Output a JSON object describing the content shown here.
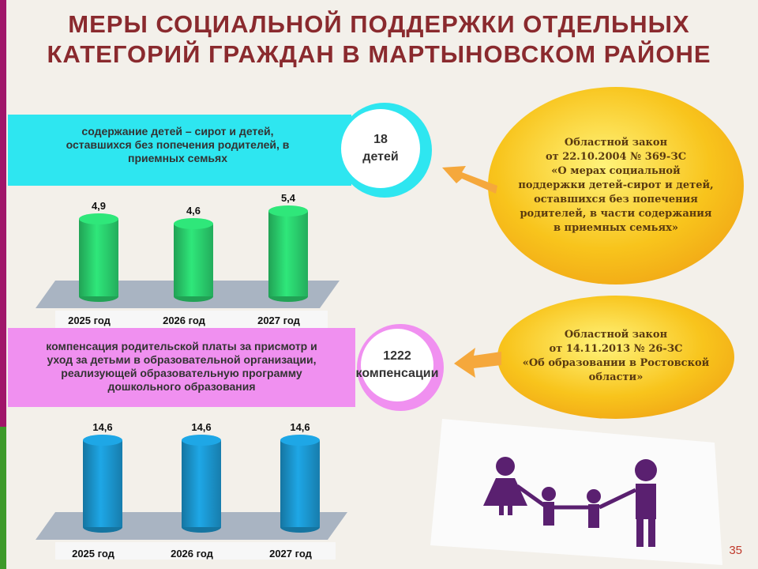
{
  "slide": {
    "title": [
      "МЕРЫ СОЦИАЛЬНОЙ ПОДДЕРЖКИ ОТДЕЛЬНЫХ",
      "КАТЕГОРИЙ ГРАЖДАН В МАРТЫНОВСКОМ РАЙОНЕ"
    ],
    "measures": [
      {
        "text": [
          "содержание детей – сирот и детей,",
          "оставшихся без попечения родителей, в",
          "приемных семьях"
        ],
        "count": [
          "18",
          "детей"
        ],
        "law": [
          "Областной закон",
          "от 22.10.2004 № 369-ЗС",
          "«О мерах социальной",
          "поддержки детей-сирот и детей,",
          "оставшихся без попечения",
          "родителей, в части содержания",
          "в приемных семьях»"
        ]
      },
      {
        "text": [
          "компенсация родительской платы за присмотр и",
          "уход за детьми в образовательной организации,",
          "реализующей образовательную программу",
          "дошкольного образования"
        ],
        "count": [
          "1222",
          "компенсации"
        ],
        "law": [
          "Областной закон",
          "от 14.11.2013 № 26-ЗС",
          "«Об образовании в Ростовской",
          "области»"
        ]
      }
    ],
    "page_number": "35"
  },
  "chart_data": [
    {
      "type": "bar",
      "categories": [
        "2025 год",
        "2026 год",
        "2027 год"
      ],
      "values": [
        4.9,
        4.6,
        5.4
      ],
      "value_labels": [
        "4,9",
        "4,6",
        "5,4"
      ],
      "color": "#2fe77a"
    },
    {
      "type": "bar",
      "categories": [
        "2025 год",
        "2026 год",
        "2027 год"
      ],
      "values": [
        14.6,
        14.6,
        14.6
      ],
      "value_labels": [
        "14,6",
        "14,6",
        "14,6"
      ],
      "color": "#1ea7e6"
    }
  ]
}
